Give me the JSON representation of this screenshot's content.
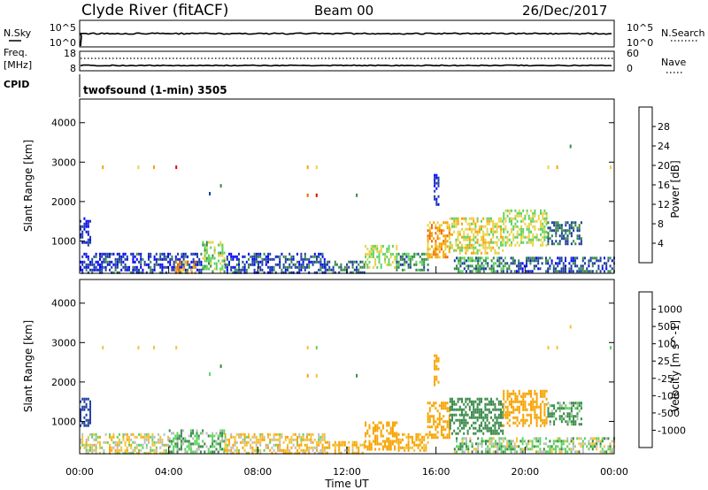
{
  "header": {
    "station": "Clyde River (fitACF)",
    "beam": "Beam 00",
    "date": "26/Dec/2017"
  },
  "top_panel": {
    "left_label": "N.Sky",
    "right_label": "N.Search",
    "left_ticks": [
      "10^5",
      "10^0"
    ],
    "right_ticks": [
      "10^5",
      "10^0"
    ]
  },
  "freq_panel": {
    "left_label": "Freq.",
    "left_unit": "[MHz]",
    "right_label": "Nave",
    "left_ticks": [
      "18",
      "8"
    ],
    "right_ticks": [
      "60",
      "0"
    ]
  },
  "cpid": {
    "label": "CPID",
    "value": "twofsound (1-min) 3505"
  },
  "colors": {
    "power": [
      "#0000ff",
      "#1f3fa0",
      "#3a8a4a",
      "#5fd35f",
      "#e8d24a",
      "#f7a400",
      "#ef6a00",
      "#e80000"
    ],
    "velocity": [
      "#e80000",
      "#ef6a00",
      "#f7a400",
      "#f2c23a",
      "#bdbdbd",
      "#5fd35f",
      "#3a8a4a",
      "#1f3fa0",
      "#0000ff"
    ]
  },
  "chart_data": [
    {
      "type": "heatmap",
      "title": "Power [dB]",
      "xlabel": "",
      "ylabel": "Slant Range [km]",
      "x_range_hours": [
        0,
        24
      ],
      "ylim": [
        180,
        4600
      ],
      "y_ticks": [
        1000,
        2000,
        3000,
        4000
      ],
      "colorbar_label": "Power [dB]",
      "colorbar_ticks": [
        "4",
        "8",
        "12",
        "16",
        "20",
        "24",
        "28"
      ],
      "regions": [
        {
          "t": [
            0.0,
            5.5
          ],
          "r": [
            200,
            700
          ],
          "v": 5
        },
        {
          "t": [
            0.0,
            0.5
          ],
          "r": [
            900,
            1600
          ],
          "v": 4
        },
        {
          "t": [
            4.3,
            5.2
          ],
          "r": [
            200,
            500
          ],
          "v": 22
        },
        {
          "t": [
            5.5,
            6.5
          ],
          "r": [
            250,
            1000
          ],
          "v": 14
        },
        {
          "t": [
            6.5,
            11.0
          ],
          "r": [
            220,
            700
          ],
          "v": 6
        },
        {
          "t": [
            11.0,
            12.8
          ],
          "r": [
            220,
            500
          ],
          "v": 8
        },
        {
          "t": [
            12.8,
            14.2
          ],
          "r": [
            300,
            900
          ],
          "v": 16
        },
        {
          "t": [
            14.2,
            15.6
          ],
          "r": [
            250,
            700
          ],
          "v": 10
        },
        {
          "t": [
            15.6,
            16.6
          ],
          "r": [
            600,
            1500
          ],
          "v": 22
        },
        {
          "t": [
            16.6,
            19.0
          ],
          "r": [
            700,
            1600
          ],
          "v": 18
        },
        {
          "t": [
            19.0,
            21.0
          ],
          "r": [
            900,
            1800
          ],
          "v": 16
        },
        {
          "t": [
            21.0,
            22.5
          ],
          "r": [
            900,
            1500
          ],
          "v": 8
        },
        {
          "t": [
            16.8,
            19.5
          ],
          "r": [
            200,
            600
          ],
          "v": 10
        },
        {
          "t": [
            19.5,
            24.0
          ],
          "r": [
            200,
            600
          ],
          "v": 6
        },
        {
          "t": [
            15.9,
            16.1
          ],
          "r": [
            1900,
            2700
          ],
          "v": 4
        }
      ],
      "scatter_points": [
        {
          "t": 1.0,
          "r": 2870,
          "v": 20
        },
        {
          "t": 2.6,
          "r": 2870,
          "v": 16
        },
        {
          "t": 3.3,
          "r": 2870,
          "v": 20
        },
        {
          "t": 4.3,
          "r": 2870,
          "v": 28
        },
        {
          "t": 10.2,
          "r": 2870,
          "v": 20
        },
        {
          "t": 10.6,
          "r": 2870,
          "v": 16
        },
        {
          "t": 10.2,
          "r": 2160,
          "v": 24
        },
        {
          "t": 10.6,
          "r": 2160,
          "v": 28
        },
        {
          "t": 12.4,
          "r": 2160,
          "v": 8
        },
        {
          "t": 21.0,
          "r": 2870,
          "v": 16
        },
        {
          "t": 21.4,
          "r": 2870,
          "v": 20
        },
        {
          "t": 22.0,
          "r": 3400,
          "v": 8
        },
        {
          "t": 23.8,
          "r": 2870,
          "v": 16
        },
        {
          "t": 5.8,
          "r": 2200,
          "v": 4
        },
        {
          "t": 6.3,
          "r": 2400,
          "v": 8
        }
      ]
    },
    {
      "type": "heatmap",
      "title": "Velocity [m s^-1]",
      "xlabel": "Time UT",
      "ylabel": "Slant Range [km]",
      "x_range_hours": [
        0,
        24
      ],
      "x_ticks": [
        "00:00",
        "04:00",
        "08:00",
        "12:00",
        "16:00",
        "20:00",
        "00:00"
      ],
      "ylim": [
        180,
        4600
      ],
      "y_ticks": [
        1000,
        2000,
        3000,
        4000
      ],
      "colorbar_label": "Velocity [m s^-1]",
      "colorbar_ticks": [
        "-1000",
        "-500",
        "-100",
        "-25",
        "25",
        "100",
        "500",
        "1000"
      ],
      "regions": [
        {
          "t": [
            0.0,
            4.0
          ],
          "r": [
            200,
            700
          ],
          "v": -30
        },
        {
          "t": [
            0.0,
            0.5
          ],
          "r": [
            900,
            1600
          ],
          "v": 600
        },
        {
          "t": [
            4.0,
            6.5
          ],
          "r": [
            200,
            800
          ],
          "v": 80
        },
        {
          "t": [
            6.5,
            11.0
          ],
          "r": [
            220,
            700
          ],
          "v": -60
        },
        {
          "t": [
            11.0,
            12.8
          ],
          "r": [
            220,
            500
          ],
          "v": -120
        },
        {
          "t": [
            12.8,
            14.2
          ],
          "r": [
            300,
            1000
          ],
          "v": -400
        },
        {
          "t": [
            14.2,
            15.6
          ],
          "r": [
            250,
            700
          ],
          "v": -150
        },
        {
          "t": [
            15.6,
            16.6
          ],
          "r": [
            600,
            1500
          ],
          "v": -300
        },
        {
          "t": [
            16.6,
            19.0
          ],
          "r": [
            700,
            1600
          ],
          "v": 300
        },
        {
          "t": [
            19.0,
            21.0
          ],
          "r": [
            900,
            1800
          ],
          "v": -200
        },
        {
          "t": [
            21.0,
            22.5
          ],
          "r": [
            900,
            1500
          ],
          "v": 100
        },
        {
          "t": [
            16.8,
            19.5
          ],
          "r": [
            200,
            600
          ],
          "v": 50
        },
        {
          "t": [
            19.5,
            24.0
          ],
          "r": [
            200,
            600
          ],
          "v": 30
        },
        {
          "t": [
            15.9,
            16.1
          ],
          "r": [
            1900,
            2700
          ],
          "v": -300
        }
      ],
      "scatter_points": [
        {
          "t": 1.0,
          "r": 2870,
          "v": -60
        },
        {
          "t": 2.6,
          "r": 2870,
          "v": -30
        },
        {
          "t": 3.3,
          "r": 2870,
          "v": -60
        },
        {
          "t": 4.3,
          "r": 2870,
          "v": -100
        },
        {
          "t": 10.2,
          "r": 2870,
          "v": -60
        },
        {
          "t": 10.6,
          "r": 2870,
          "v": 60
        },
        {
          "t": 10.2,
          "r": 2160,
          "v": -200
        },
        {
          "t": 10.6,
          "r": 2160,
          "v": -100
        },
        {
          "t": 12.4,
          "r": 2160,
          "v": 400
        },
        {
          "t": 21.0,
          "r": 2870,
          "v": -60
        },
        {
          "t": 21.4,
          "r": 2870,
          "v": -30
        },
        {
          "t": 22.0,
          "r": 3400,
          "v": -30
        },
        {
          "t": 23.8,
          "r": 2870,
          "v": 60
        },
        {
          "t": 5.8,
          "r": 2200,
          "v": 60
        },
        {
          "t": 6.3,
          "r": 2400,
          "v": 400
        }
      ]
    }
  ]
}
